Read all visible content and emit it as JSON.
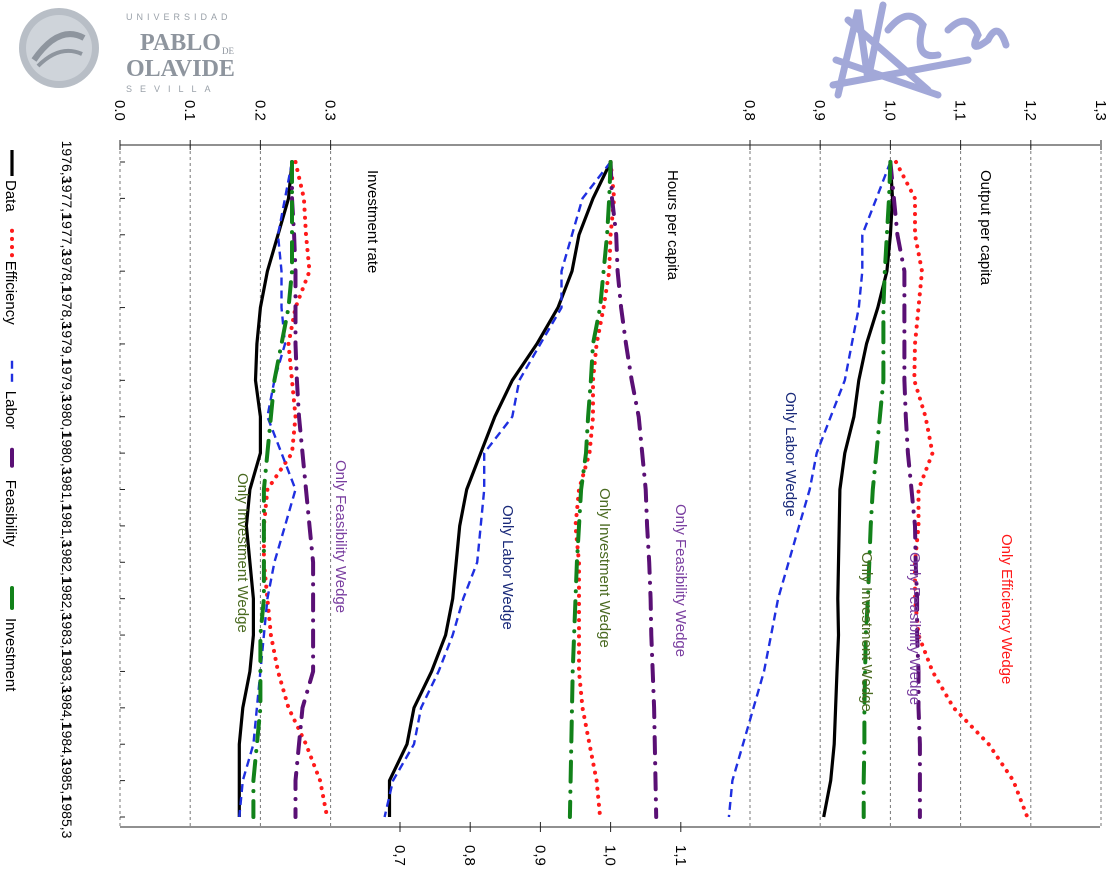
{
  "logos": {
    "university": {
      "top": "UNIVERSIDAD",
      "name_line1": "PABLO",
      "name_de": "DE",
      "name_line2": "OLAVIDE",
      "bottom": "SEVILLA"
    },
    "right_logo_icon": "signature-mark-icon"
  },
  "colors": {
    "data": "#000000",
    "efficiency": "#ff1a1a",
    "labor": "#1f2fe0",
    "feasibility": "#5a1075",
    "investment": "#12821a",
    "ann_efficiency": "#ff1a1a",
    "ann_labor": "#1a2a7a",
    "ann_feasibility": "#7a3fa0",
    "ann_investment": "#4b6b22"
  },
  "chart_data": {
    "type": "line",
    "categories": [
      "1976,3",
      "1977,1",
      "1977,3",
      "1978,1",
      "1978,3",
      "1979,1",
      "1979,3",
      "1980,1",
      "1980,3",
      "1981,1",
      "1981,3",
      "1982,1",
      "1982,3",
      "1983,1",
      "1983,3",
      "1984,1",
      "1984,3",
      "1985,1",
      "1985,3"
    ],
    "legend": [
      "Data",
      "Efficiency",
      "Labor",
      "Feasibility",
      "Investment"
    ],
    "legend_placement": "left (rotated)",
    "grid": true,
    "panels": [
      {
        "title": "Output per capita",
        "axis_ticks": [
          "0,8",
          "0,9",
          "1,0",
          "1,1",
          "1,2",
          "1,3"
        ],
        "range": [
          0.8,
          1.3
        ],
        "annotations": [
          "Only Efficiency Wedge",
          "Only Feasibility Wedge",
          "Only Investment Wedge",
          "Only Labor Wedge"
        ],
        "series": [
          {
            "name": "Data",
            "key": "data",
            "values": [
              1.0,
              1.003,
              1.0,
              0.995,
              0.982,
              0.966,
              0.955,
              0.948,
              0.935,
              0.928,
              0.927,
              0.926,
              0.925,
              0.926,
              0.924,
              0.922,
              0.92,
              0.915,
              0.905
            ]
          },
          {
            "name": "Efficiency",
            "key": "efficiency",
            "values": [
              1.008,
              1.035,
              1.035,
              1.045,
              1.04,
              1.035,
              1.034,
              1.05,
              1.06,
              1.04,
              1.04,
              1.035,
              1.035,
              1.04,
              1.06,
              1.09,
              1.14,
              1.175,
              1.195
            ]
          },
          {
            "name": "Labor",
            "key": "labor",
            "values": [
              1.0,
              0.98,
              0.96,
              0.96,
              0.955,
              0.945,
              0.935,
              0.915,
              0.895,
              0.885,
              0.87,
              0.855,
              0.84,
              0.83,
              0.82,
              0.805,
              0.79,
              0.775,
              0.77
            ]
          },
          {
            "name": "Feasibility",
            "key": "feasibility",
            "values": [
              1.0,
              1.005,
              1.01,
              1.02,
              1.02,
              1.02,
              1.02,
              1.022,
              1.025,
              1.03,
              1.035,
              1.036,
              1.038,
              1.038,
              1.04,
              1.04,
              1.042,
              1.042,
              1.042
            ]
          },
          {
            "name": "Investment",
            "key": "investment",
            "values": [
              1.0,
              0.998,
              0.995,
              0.992,
              0.99,
              0.99,
              0.99,
              0.985,
              0.98,
              0.975,
              0.972,
              0.97,
              0.968,
              0.965,
              0.964,
              0.963,
              0.963,
              0.962,
              0.962
            ]
          }
        ]
      },
      {
        "title": "Hours per capita",
        "axis_ticks": [
          "0,7",
          "0,8",
          "0,9",
          "1,0",
          "1,1"
        ],
        "range": [
          0.7,
          1.1
        ],
        "annotations": [
          "Only Feasibility Wedge",
          "Only Investment Wedge",
          "Only Labor Wedge"
        ],
        "series": [
          {
            "name": "Data",
            "key": "data",
            "values": [
              1.0,
              0.975,
              0.955,
              0.945,
              0.925,
              0.895,
              0.86,
              0.835,
              0.815,
              0.795,
              0.785,
              0.78,
              0.775,
              0.765,
              0.745,
              0.72,
              0.71,
              0.685,
              0.685
            ]
          },
          {
            "name": "Efficiency",
            "key": "efficiency",
            "values": [
              1.0,
              1.005,
              1.0,
              0.998,
              0.99,
              0.98,
              0.975,
              0.975,
              0.97,
              0.955,
              0.95,
              0.955,
              0.955,
              0.955,
              0.955,
              0.96,
              0.97,
              0.98,
              0.985
            ]
          },
          {
            "name": "Labor",
            "key": "labor",
            "values": [
              1.0,
              0.96,
              0.945,
              0.93,
              0.93,
              0.9,
              0.87,
              0.86,
              0.82,
              0.82,
              0.815,
              0.81,
              0.79,
              0.775,
              0.755,
              0.73,
              0.72,
              0.69,
              0.678
            ]
          },
          {
            "name": "Feasibility",
            "key": "feasibility",
            "values": [
              1.0,
              1.002,
              1.008,
              1.01,
              1.015,
              1.022,
              1.03,
              1.04,
              1.045,
              1.05,
              1.052,
              1.055,
              1.057,
              1.058,
              1.06,
              1.062,
              1.063,
              1.064,
              1.065
            ]
          },
          {
            "name": "Investment",
            "key": "investment",
            "values": [
              1.0,
              0.998,
              0.995,
              0.99,
              0.985,
              0.975,
              0.972,
              0.968,
              0.965,
              0.958,
              0.955,
              0.952,
              0.95,
              0.948,
              0.946,
              0.945,
              0.944,
              0.943,
              0.942
            ]
          }
        ]
      },
      {
        "title": "Investment rate",
        "axis_ticks": [
          "0.0",
          "0.1",
          "0.2",
          "0.3"
        ],
        "range": [
          0.0,
          0.3
        ],
        "annotations": [
          "Only Feasibility Wedge",
          "Only Investment Wedge"
        ],
        "series": [
          {
            "name": "Data",
            "key": "data",
            "values": [
              0.245,
              0.24,
              0.225,
              0.21,
              0.2,
              0.195,
              0.193,
              0.2,
              0.2,
              0.185,
              0.18,
              0.185,
              0.19,
              0.19,
              0.185,
              0.175,
              0.17,
              0.17,
              0.17
            ]
          },
          {
            "name": "Efficiency",
            "key": "efficiency",
            "values": [
              0.25,
              0.262,
              0.265,
              0.27,
              0.25,
              0.24,
              0.245,
              0.25,
              0.245,
              0.21,
              0.205,
              0.205,
              0.21,
              0.215,
              0.225,
              0.24,
              0.265,
              0.285,
              0.295
            ]
          },
          {
            "name": "Labor",
            "key": "labor",
            "values": [
              0.245,
              0.235,
              0.225,
              0.23,
              0.23,
              0.235,
              0.22,
              0.21,
              0.23,
              0.25,
              0.235,
              0.22,
              0.21,
              0.205,
              0.2,
              0.195,
              0.19,
              0.175,
              0.17
            ]
          },
          {
            "name": "Feasibility",
            "key": "feasibility",
            "values": [
              0.245,
              0.245,
              0.248,
              0.25,
              0.25,
              0.25,
              0.252,
              0.255,
              0.26,
              0.265,
              0.27,
              0.275,
              0.275,
              0.275,
              0.275,
              0.26,
              0.255,
              0.25,
              0.25
            ]
          },
          {
            "name": "Investment",
            "key": "investment",
            "values": [
              0.245,
              0.245,
              0.245,
              0.245,
              0.24,
              0.23,
              0.22,
              0.215,
              0.21,
              0.205,
              0.205,
              0.205,
              0.205,
              0.2,
              0.2,
              0.2,
              0.195,
              0.19,
              0.19
            ]
          }
        ]
      }
    ]
  }
}
